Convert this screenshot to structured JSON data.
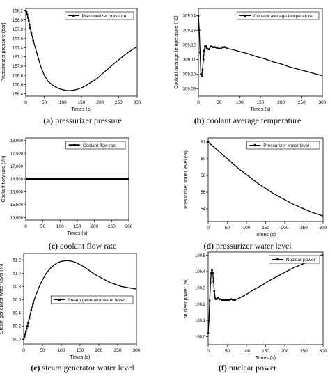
{
  "charts": [
    {
      "id": "a",
      "caption": {
        "letter": "(a)",
        "text": "pressurizer pressure"
      },
      "chart_data": {
        "type": "line",
        "xlabel": "Times (s)",
        "ylabel": "Pressureizer pressure (bar)",
        "xlim": [
          0,
          300
        ],
        "ylim": [
          156.35,
          158.25
        ],
        "xticks": [
          0,
          50,
          100,
          150,
          200,
          250,
          300
        ],
        "yticks": [
          156.4,
          156.6,
          156.8,
          157.0,
          157.2,
          157.4,
          157.6,
          157.8,
          158.0,
          158.2
        ],
        "ytick_labels": [
          "156.4",
          "156.6",
          "156.8",
          "157.0",
          "157.2",
          "157.4",
          "157.6",
          "157.8",
          "158.0",
          "158.2"
        ],
        "legend": {
          "label": "Pressureizer pressure",
          "position": "top-right"
        },
        "series": [
          {
            "name": "Pressureizer pressure",
            "marker": "square",
            "marker_until": 20,
            "x": [
              0,
              2,
              4,
              6,
              8,
              10,
              12,
              15,
              20,
              30,
              40,
              50,
              60,
              70,
              80,
              90,
              100,
              110,
              120,
              130,
              140,
              150,
              160,
              170,
              180,
              190,
              200,
              210,
              220,
              230,
              240,
              250,
              260,
              270,
              280,
              290,
              300
            ],
            "y": [
              158.2,
              158.17,
              158.12,
              158.05,
              157.98,
              157.9,
              157.82,
              157.72,
              157.56,
              157.28,
              157.0,
              156.8,
              156.67,
              156.6,
              156.55,
              156.51,
              156.49,
              156.47,
              156.47,
              156.48,
              156.5,
              156.53,
              156.57,
              156.62,
              156.67,
              156.72,
              156.79,
              156.86,
              156.93,
              157.0,
              157.07,
              157.13,
              157.2,
              157.26,
              157.32,
              157.37,
              157.42
            ]
          }
        ]
      }
    },
    {
      "id": "b",
      "caption": {
        "letter": "(b)",
        "text": "coolant average temperature"
      },
      "chart_data": {
        "type": "line",
        "xlabel": "Times (s)",
        "ylabel": "Coolant average temperature (°C)",
        "xlim": [
          0,
          300
        ],
        "ylim": [
          309.085,
          309.145
        ],
        "xticks": [
          0,
          50,
          100,
          150,
          200,
          250,
          300
        ],
        "yticks": [
          309.09,
          309.1,
          309.11,
          309.12,
          309.13,
          309.14
        ],
        "ytick_labels": [
          "309.09",
          "309.10",
          "309.11",
          "309.12",
          "309.13",
          "309.14"
        ],
        "legend": {
          "label": "Coolant average temperature",
          "position": "top-right"
        },
        "series": [
          {
            "name": "Coolant average temperature",
            "marker": "square",
            "marker_until": 70,
            "x": [
              0,
              2,
              4,
              6,
              8,
              10,
              12,
              14,
              16,
              18,
              20,
              25,
              30,
              35,
              40,
              45,
              50,
              55,
              60,
              65,
              70,
              80,
              100,
              120,
              140,
              160,
              180,
              200,
              220,
              240,
              260,
              280,
              300
            ],
            "y": [
              309.14,
              309.13,
              309.115,
              309.1,
              309.099,
              309.103,
              309.11,
              309.116,
              309.119,
              309.119,
              309.118,
              309.117,
              309.119,
              309.1185,
              309.1185,
              309.118,
              309.1175,
              309.1175,
              309.1185,
              309.1185,
              309.1175,
              309.117,
              309.1155,
              309.114,
              309.112,
              309.1105,
              309.1085,
              309.107,
              309.105,
              309.1035,
              309.102,
              309.1005,
              309.099
            ]
          }
        ]
      }
    },
    {
      "id": "c",
      "caption": {
        "letter": "(c)",
        "text": "coolant flow rate"
      },
      "chart_data": {
        "type": "line",
        "xlabel": "Times (s)",
        "ylabel": "Coolant flow rate (t/h)",
        "xlim": [
          0,
          300
        ],
        "ylim": [
          14900,
          18100
        ],
        "xticks": [
          0,
          50,
          100,
          150,
          200,
          250,
          300
        ],
        "yticks": [
          15000,
          15500,
          16000,
          16500,
          17000,
          17500,
          18000
        ],
        "ytick_labels": [
          "15,000",
          "15,500",
          "16,000",
          "16,500",
          "17,000",
          "17,500",
          "18,000"
        ],
        "legend": {
          "label": "Coolant flow rate",
          "position": "top-right"
        },
        "series": [
          {
            "name": "Coolant flow rate",
            "marker": "none",
            "thick": true,
            "x": [
              0,
              300
            ],
            "y": [
              16500,
              16500
            ]
          }
        ]
      }
    },
    {
      "id": "d",
      "caption": {
        "letter": "(d)",
        "text": "pressurizer water level"
      },
      "chart_data": {
        "type": "line",
        "xlabel": "Times (s)",
        "ylabel": "Pressurizer water level (%)",
        "xlim": [
          0,
          300
        ],
        "ylim": [
          52.5,
          62.5
        ],
        "xticks": [
          0,
          50,
          100,
          150,
          200,
          250,
          300
        ],
        "yticks": [
          54,
          56,
          58,
          60,
          62
        ],
        "ytick_labels": [
          "54",
          "56",
          "58",
          "60",
          "62"
        ],
        "legend": {
          "label": "Pressurizer water level",
          "position": "top-right"
        },
        "series": [
          {
            "name": "Pressurizer water level",
            "marker": "square",
            "marker_until": 0,
            "x": [
              0,
              10,
              20,
              30,
              40,
              50,
              60,
              70,
              80,
              90,
              100,
              110,
              120,
              130,
              140,
              150,
              160,
              170,
              180,
              190,
              200,
              210,
              220,
              230,
              240,
              250,
              260,
              270,
              280,
              290,
              300
            ],
            "y": [
              62.0,
              61.6,
              61.2,
              60.8,
              60.4,
              60.0,
              59.6,
              59.2,
              58.8,
              58.45,
              58.1,
              57.75,
              57.4,
              57.05,
              56.75,
              56.45,
              56.15,
              55.85,
              55.6,
              55.35,
              55.1,
              54.85,
              54.6,
              54.4,
              54.2,
              54.0,
              53.8,
              53.6,
              53.45,
              53.3,
              53.15
            ]
          }
        ]
      }
    },
    {
      "id": "e",
      "caption": {
        "letter": "(e)",
        "text": "steam generator water level"
      },
      "chart_data": {
        "type": "line",
        "xlabel": "Times (s)",
        "ylabel": "Steam generator water level (%)",
        "xlim": [
          0,
          300
        ],
        "ylim": [
          49.93,
          51.3
        ],
        "xticks": [
          0,
          50,
          100,
          150,
          200,
          250,
          300
        ],
        "yticks": [
          50.0,
          50.2,
          50.4,
          50.6,
          50.8,
          51.0,
          51.2
        ],
        "ytick_labels": [
          "50.0",
          "50.2",
          "50.4",
          "50.6",
          "50.8",
          "51.0",
          "51.2"
        ],
        "legend": {
          "label": "Steam generator water level",
          "position": "middle-right"
        },
        "series": [
          {
            "name": "Steam generator water level",
            "marker": "square",
            "marker_until": 25,
            "x": [
              0,
              2,
              4,
              6,
              8,
              10,
              12,
              15,
              20,
              25,
              30,
              40,
              50,
              60,
              70,
              80,
              90,
              100,
              110,
              120,
              130,
              140,
              150,
              160,
              170,
              180,
              190,
              200,
              210,
              220,
              230,
              240,
              250,
              260,
              270,
              280,
              290,
              300
            ],
            "y": [
              50.0,
              50.04,
              50.08,
              50.12,
              50.16,
              50.2,
              50.25,
              50.32,
              50.44,
              50.54,
              50.63,
              50.78,
              50.9,
              51.0,
              51.07,
              51.12,
              51.16,
              51.18,
              51.19,
              51.19,
              51.18,
              51.16,
              51.13,
              51.1,
              51.06,
              51.02,
              50.98,
              50.95,
              50.92,
              50.89,
              50.86,
              50.84,
              50.82,
              50.8,
              50.79,
              50.78,
              50.77,
              50.76
            ]
          }
        ]
      }
    },
    {
      "id": "f",
      "caption": {
        "letter": "(f)",
        "text": "nuclear power"
      },
      "chart_data": {
        "type": "line",
        "xlabel": "Times (s)",
        "ylabel": "Nuclear power (%)",
        "xlim": [
          0,
          300
        ],
        "ylim": [
          99.95,
          100.52
        ],
        "xticks": [
          0,
          50,
          100,
          150,
          200,
          250,
          300
        ],
        "yticks": [
          100.0,
          100.1,
          100.2,
          100.3,
          100.4,
          100.5
        ],
        "ytick_labels": [
          "100.0",
          "100.1",
          "100.2",
          "100.3",
          "100.4",
          "100.5"
        ],
        "legend": {
          "label": "Nuclear power",
          "position": "top-right"
        },
        "series": [
          {
            "name": "Nuclear power",
            "marker": "square",
            "marker_until": 70,
            "x": [
              0,
              2,
              4,
              6,
              8,
              10,
              12,
              14,
              16,
              18,
              20,
              22,
              25,
              30,
              35,
              40,
              45,
              50,
              55,
              60,
              65,
              70,
              80,
              100,
              120,
              140,
              160,
              180,
              200,
              220,
              240,
              260,
              280,
              300
            ],
            "y": [
              100.02,
              100.1,
              100.22,
              100.33,
              100.39,
              100.41,
              100.39,
              100.34,
              100.28,
              100.24,
              100.23,
              100.23,
              100.24,
              100.23,
              100.225,
              100.225,
              100.225,
              100.225,
              100.225,
              100.23,
              100.225,
              100.225,
              100.235,
              100.26,
              100.29,
              100.315,
              100.345,
              100.37,
              100.395,
              100.42,
              100.44,
              100.46,
              100.485,
              100.505
            ]
          }
        ]
      }
    }
  ]
}
